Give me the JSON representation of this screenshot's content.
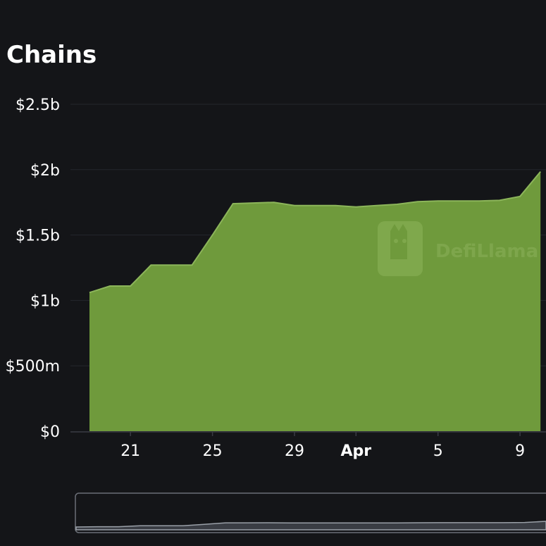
{
  "title": "Chains",
  "watermark": "DefiLlama",
  "colors": {
    "background": "#141518",
    "area_fill": "#6f9a3c",
    "area_stroke": "#8cb55a",
    "grid": "#25272c",
    "axis": "#3a3d44"
  },
  "chart_data": {
    "type": "area",
    "title": "Chains",
    "xlabel": "",
    "ylabel": "",
    "ylim": [
      0,
      2500000000
    ],
    "grid": true,
    "y_ticks": [
      {
        "value": 0,
        "label": "$0"
      },
      {
        "value": 500000000,
        "label": "$500m"
      },
      {
        "value": 1000000000,
        "label": "$1b"
      },
      {
        "value": 1500000000,
        "label": "$1.5b"
      },
      {
        "value": 2000000000,
        "label": "$2b"
      },
      {
        "value": 2500000000,
        "label": "$2.5b"
      }
    ],
    "x_ticks": [
      {
        "date": "Mar 21",
        "label": "21",
        "bold": false
      },
      {
        "date": "Mar 25",
        "label": "25",
        "bold": false
      },
      {
        "date": "Mar 29",
        "label": "29",
        "bold": false
      },
      {
        "date": "Apr 1",
        "label": "Apr",
        "bold": true
      },
      {
        "date": "Apr 5",
        "label": "5",
        "bold": false
      },
      {
        "date": "Apr 9",
        "label": "9",
        "bold": false
      }
    ],
    "x": [
      "Mar 19",
      "Mar 20",
      "Mar 21",
      "Mar 22",
      "Mar 23",
      "Mar 24",
      "Mar 25",
      "Mar 26",
      "Mar 27",
      "Mar 28",
      "Mar 29",
      "Mar 30",
      "Mar 31",
      "Apr 1",
      "Apr 2",
      "Apr 3",
      "Apr 4",
      "Apr 5",
      "Apr 6",
      "Apr 7",
      "Apr 8",
      "Apr 9",
      "Apr 10"
    ],
    "series": [
      {
        "values": [
          1060000000,
          1110000000,
          1110000000,
          1270000000,
          1270000000,
          1270000000,
          1500000000,
          1740000000,
          1745000000,
          1750000000,
          1725000000,
          1725000000,
          1725000000,
          1715000000,
          1725000000,
          1735000000,
          1755000000,
          1760000000,
          1760000000,
          1760000000,
          1765000000,
          1795000000,
          1985000000
        ]
      }
    ]
  }
}
